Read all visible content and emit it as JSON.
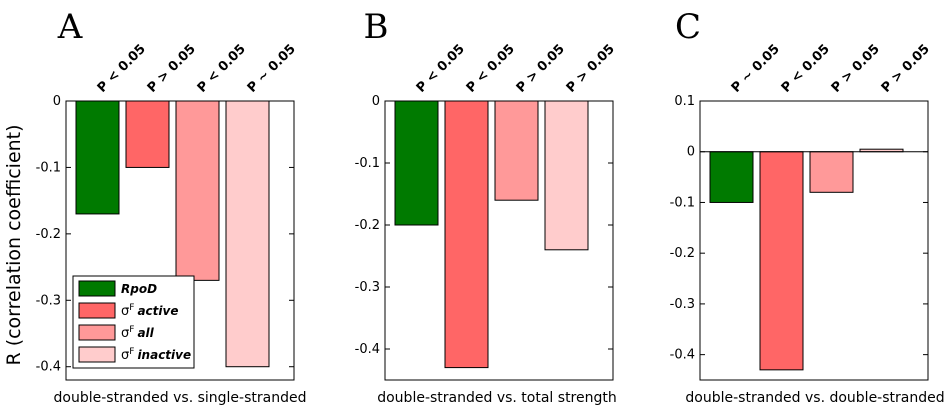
{
  "ylabel": "R (correlation coefficient)",
  "colors": {
    "rpoD": "#007a00",
    "sigmaF_active": "#ff6666",
    "sigmaF_all": "#ff9999",
    "sigmaF_inactive": "#ffcccc"
  },
  "legend": [
    {
      "symbol": "",
      "sup": "",
      "text": "RpoD",
      "color": "#007a00"
    },
    {
      "symbol": "σ",
      "sup": "F",
      "text": "active",
      "color": "#ff6666"
    },
    {
      "symbol": "σ",
      "sup": "F",
      "text": "all",
      "color": "#ff9999"
    },
    {
      "symbol": "σ",
      "sup": "F",
      "text": "inactive",
      "color": "#ffcccc"
    }
  ],
  "chart_data": [
    {
      "type": "bar",
      "panel": "A",
      "xlabel": "double-stranded vs. single-stranded",
      "categories": [
        "RpoD",
        "σF active",
        "σF all",
        "σF inactive"
      ],
      "values": [
        -0.17,
        -0.1,
        -0.27,
        -0.4
      ],
      "pvalues": [
        "P < 0.05",
        "P > 0.05",
        "P < 0.05",
        "P ~ 0.05"
      ],
      "ylim": [
        -0.42,
        0
      ],
      "yticks": [
        0,
        -0.1,
        -0.2,
        -0.3,
        -0.4
      ],
      "yticklabels": [
        "0",
        "-0.1",
        "-0.2",
        "-0.3",
        "-0.4"
      ],
      "legend": "bottom-left",
      "grid": false
    },
    {
      "type": "bar",
      "panel": "B",
      "xlabel": "double-stranded vs. total strength",
      "categories": [
        "RpoD",
        "σF active",
        "σF all",
        "σF inactive"
      ],
      "values": [
        -0.2,
        -0.43,
        -0.16,
        -0.24
      ],
      "pvalues": [
        "P < 0.05",
        "P < 0.05",
        "P > 0.05",
        "P > 0.05"
      ],
      "ylim": [
        -0.45,
        0
      ],
      "yticks": [
        0,
        -0.1,
        -0.2,
        -0.3,
        -0.4
      ],
      "yticklabels": [
        "0",
        "-0.1",
        "-0.2",
        "-0.3",
        "-0.4"
      ],
      "grid": false
    },
    {
      "type": "bar",
      "panel": "C",
      "xlabel": "double-stranded vs. double-stranded",
      "categories": [
        "RpoD",
        "σF active",
        "σF all",
        "σF inactive"
      ],
      "values": [
        -0.1,
        -0.43,
        -0.08,
        0.005
      ],
      "pvalues": [
        "P ~ 0.05",
        "P < 0.05",
        "P > 0.05",
        "P > 0.05"
      ],
      "ylim": [
        -0.45,
        0.1
      ],
      "yticks": [
        0.1,
        0,
        -0.1,
        -0.2,
        -0.3,
        -0.4
      ],
      "yticklabels": [
        "0.1",
        "0",
        "-0.1",
        "-0.2",
        "-0.3",
        "-0.4"
      ],
      "grid": false
    }
  ]
}
